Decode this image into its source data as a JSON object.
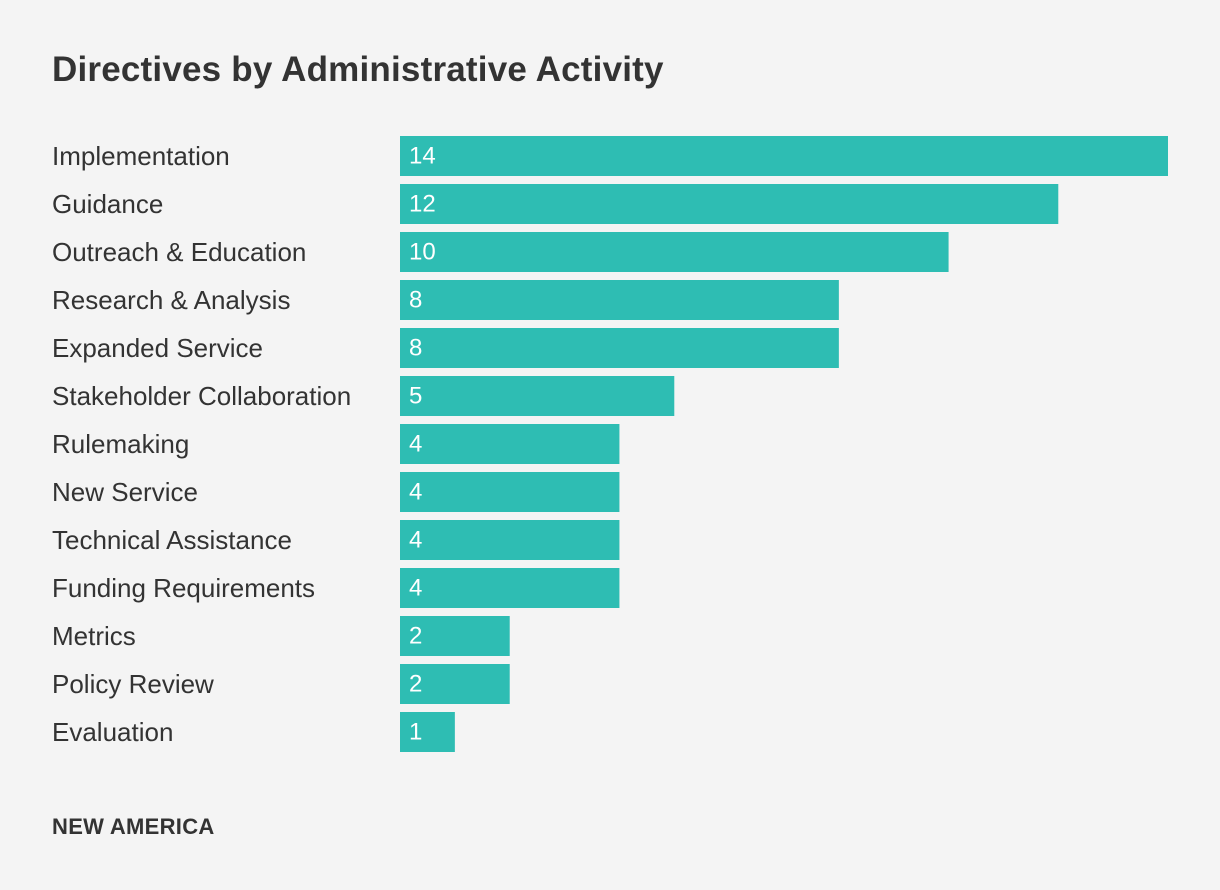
{
  "colors": {
    "background": "#f4f4f4",
    "bar": "#2ebdb3",
    "text": "#333333",
    "bar_label": "#ffffff"
  },
  "footer": {
    "brand": "NEW AMERICA"
  },
  "chart_data": {
    "type": "bar",
    "orientation": "horizontal",
    "title": "Directives by Administrative Activity",
    "categories": [
      "Implementation",
      "Guidance",
      "Outreach & Education",
      "Research & Analysis",
      "Expanded Service",
      "Stakeholder Collaboration",
      "Rulemaking",
      "New Service",
      "Technical Assistance",
      "Funding Requirements",
      "Metrics",
      "Policy Review",
      "Evaluation"
    ],
    "values": [
      14,
      12,
      10,
      8,
      8,
      5,
      4,
      4,
      4,
      4,
      2,
      2,
      1
    ],
    "xlim": [
      0,
      14
    ],
    "xlabel": "",
    "ylabel": "",
    "grid": false,
    "legend": "none",
    "data_labels": "inside-start"
  }
}
